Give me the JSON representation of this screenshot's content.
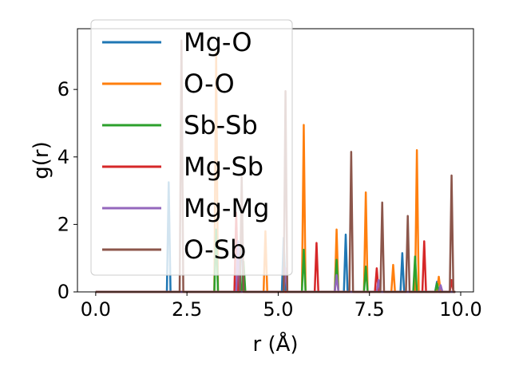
{
  "chart_data": {
    "type": "line",
    "xlabel": "r (Å)",
    "ylabel": "g(r)",
    "xlim": [
      -0.5,
      10.35
    ],
    "ylim": [
      0,
      7.8
    ],
    "xticks": [
      0.0,
      2.5,
      5.0,
      7.5,
      10.0
    ],
    "xtick_labels": [
      "0.0",
      "2.5",
      "5.0",
      "7.5",
      "10.0"
    ],
    "yticks": [
      0,
      2,
      4,
      6
    ],
    "ytick_labels": [
      "0",
      "2",
      "4",
      "6"
    ],
    "legend_position": "upper-left",
    "grid": false,
    "series": [
      {
        "name": "Mg-O",
        "color": "#1f77b4",
        "peaks": [
          [
            2.0,
            3.25
          ],
          [
            4.0,
            2.1
          ],
          [
            5.15,
            1.6
          ],
          [
            6.85,
            1.7
          ],
          [
            8.4,
            1.15
          ],
          [
            9.35,
            0.3
          ]
        ]
      },
      {
        "name": "O-O",
        "color": "#ff7f0e",
        "peaks": [
          [
            3.3,
            7.1
          ],
          [
            4.65,
            1.8
          ],
          [
            5.7,
            4.95
          ],
          [
            6.6,
            1.85
          ],
          [
            7.4,
            2.95
          ],
          [
            8.15,
            0.8
          ],
          [
            8.8,
            4.2
          ],
          [
            9.4,
            0.45
          ]
        ]
      },
      {
        "name": "Sb-Sb",
        "color": "#2ca02c",
        "peaks": [
          [
            3.3,
            1.85
          ],
          [
            4.05,
            0.9
          ],
          [
            5.7,
            1.25
          ],
          [
            6.6,
            0.95
          ],
          [
            7.4,
            0.75
          ],
          [
            8.75,
            1.05
          ],
          [
            9.35,
            0.25
          ]
        ]
      },
      {
        "name": "Mg-Sb",
        "color": "#d62728",
        "peaks": [
          [
            3.85,
            2.35
          ],
          [
            6.05,
            1.45
          ],
          [
            7.7,
            0.7
          ],
          [
            9.0,
            1.5
          ],
          [
            9.75,
            0.35
          ]
        ]
      },
      {
        "name": "Mg-Mg",
        "color": "#9467bd",
        "peaks": [
          [
            3.9,
            1.5
          ],
          [
            5.2,
            0.7
          ],
          [
            6.6,
            0.5
          ],
          [
            7.75,
            0.35
          ],
          [
            9.45,
            0.2
          ]
        ]
      },
      {
        "name": "O-Sb",
        "color": "#8c564b",
        "peaks": [
          [
            2.35,
            7.45
          ],
          [
            4.0,
            3.4
          ],
          [
            5.2,
            5.95
          ],
          [
            7.0,
            4.15
          ],
          [
            7.85,
            2.65
          ],
          [
            8.55,
            2.25
          ],
          [
            9.75,
            3.45
          ]
        ]
      }
    ]
  }
}
